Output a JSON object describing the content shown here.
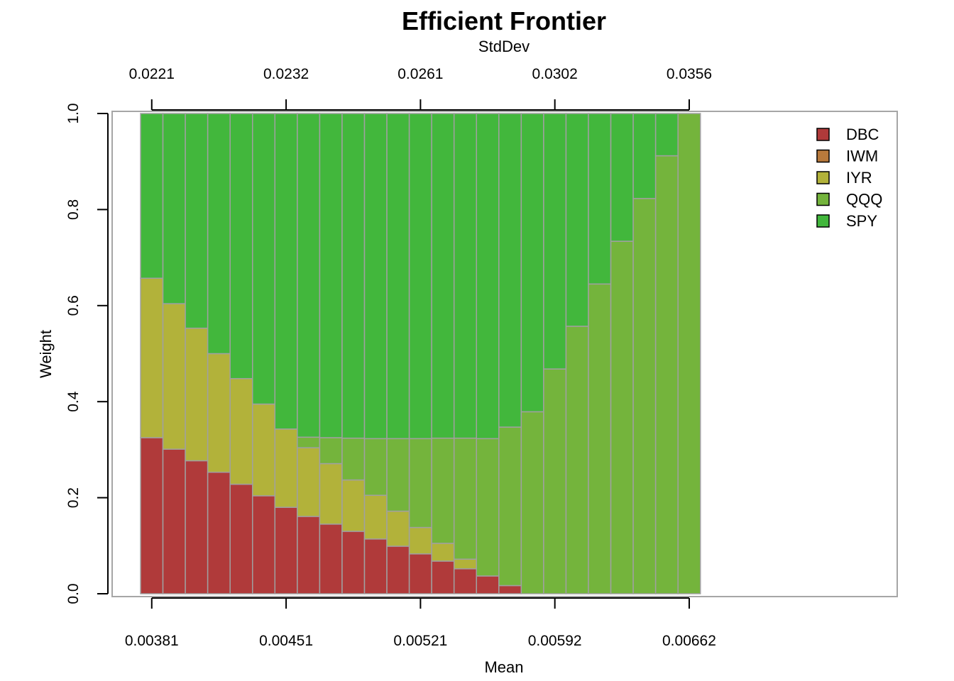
{
  "chart_data": {
    "type": "bar",
    "stacked": true,
    "title": "Efficient Frontier",
    "top_axis_label": "StdDev",
    "xlabel": "Mean",
    "ylabel": "Weight",
    "ylim": [
      0,
      1
    ],
    "y_ticks": [
      "0.0",
      "0.2",
      "0.4",
      "0.6",
      "0.8",
      "1.0"
    ],
    "bottom_tick_labels": [
      "0.00381",
      "0.00451",
      "0.00521",
      "0.00592",
      "0.00662"
    ],
    "bottom_tick_bar_index": [
      1,
      7,
      13,
      19,
      25
    ],
    "top_tick_labels": [
      "0.0221",
      "0.0232",
      "0.0261",
      "0.0302",
      "0.0356"
    ],
    "legend_position": "top-right",
    "bar_count": 25,
    "series": [
      {
        "name": "DBC",
        "color": "#B03A3A",
        "values": [
          0.325,
          0.301,
          0.277,
          0.253,
          0.228,
          0.204,
          0.18,
          0.161,
          0.145,
          0.13,
          0.114,
          0.099,
          0.083,
          0.068,
          0.052,
          0.037,
          0.017,
          0,
          0,
          0,
          0,
          0,
          0,
          0,
          0
        ]
      },
      {
        "name": "IWM",
        "color": "#B87A3C",
        "values": [
          0,
          0,
          0,
          0,
          0,
          0,
          0,
          0,
          0,
          0,
          0,
          0,
          0,
          0,
          0,
          0,
          0,
          0,
          0,
          0,
          0,
          0,
          0,
          0,
          0
        ]
      },
      {
        "name": "IYR",
        "color": "#B2B23A",
        "values": [
          0.332,
          0.303,
          0.276,
          0.247,
          0.22,
          0.191,
          0.163,
          0.143,
          0.126,
          0.107,
          0.091,
          0.073,
          0.055,
          0.037,
          0.02,
          0,
          0,
          0,
          0,
          0,
          0,
          0,
          0,
          0,
          0
        ]
      },
      {
        "name": "QQQ",
        "color": "#74B43C",
        "values": [
          0,
          0,
          0,
          0,
          0,
          0,
          0,
          0.022,
          0.054,
          0.087,
          0.118,
          0.151,
          0.185,
          0.219,
          0.252,
          0.286,
          0.33,
          0.379,
          0.468,
          0.557,
          0.645,
          0.734,
          0.823,
          0.912,
          1.0
        ]
      },
      {
        "name": "SPY",
        "color": "#42B73C",
        "values": [
          0.343,
          0.396,
          0.447,
          0.5,
          0.552,
          0.605,
          0.657,
          0.674,
          0.675,
          0.676,
          0.677,
          0.677,
          0.677,
          0.676,
          0.676,
          0.677,
          0.653,
          0.621,
          0.532,
          0.443,
          0.355,
          0.266,
          0.177,
          0.088,
          0
        ]
      }
    ]
  }
}
